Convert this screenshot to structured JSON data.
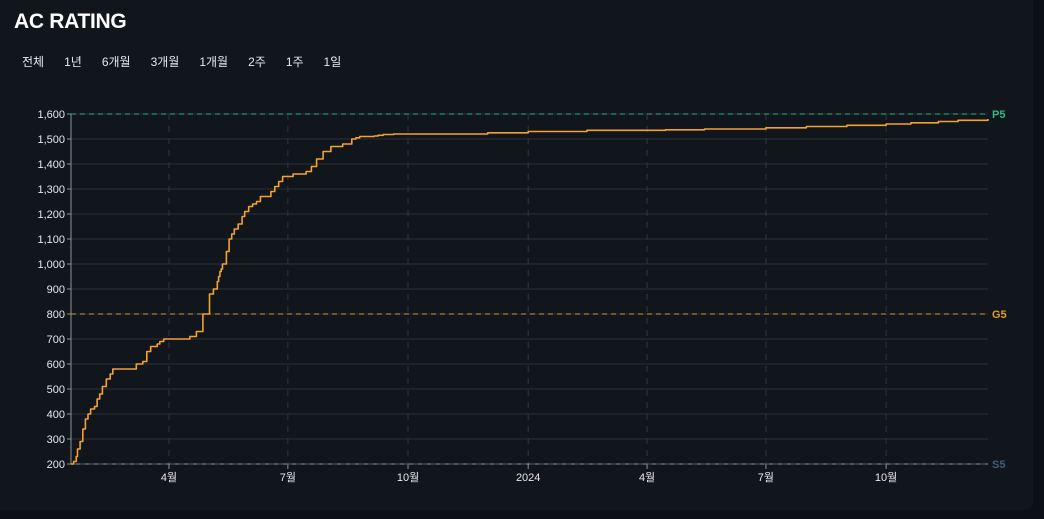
{
  "header": {
    "title": "AC RATING"
  },
  "time_ranges": [
    "전체",
    "1년",
    "6개월",
    "3개월",
    "1개월",
    "2주",
    "1주",
    "1일"
  ],
  "colors": {
    "line": "#f5a131",
    "gold": "#e59a2e",
    "platinum": "#2bbd82",
    "silver": "#445a73",
    "grid": "#2a3038",
    "text": "#e6e8eb"
  },
  "chart_data": {
    "type": "line",
    "title": "",
    "xlabel": "",
    "ylabel": "",
    "ylim": [
      200,
      1600
    ],
    "yticks": [
      "1,600",
      "1,500",
      "1,400",
      "1,300",
      "1,200",
      "1,100",
      "1,000",
      "900",
      "800",
      "700",
      "600",
      "500",
      "400",
      "300",
      "200"
    ],
    "xticks": [
      {
        "label": "4월",
        "date": "2023-04-01"
      },
      {
        "label": "7월",
        "date": "2023-07-01"
      },
      {
        "label": "10월",
        "date": "2023-10-01"
      },
      {
        "label": "2024",
        "date": "2024-01-01"
      },
      {
        "label": "4월",
        "date": "2024-04-01"
      },
      {
        "label": "7월",
        "date": "2024-07-01"
      },
      {
        "label": "10월",
        "date": "2024-10-01"
      }
    ],
    "xlim": [
      "2023-01-16",
      "2024-12-18"
    ],
    "reference_lines": [
      {
        "label": "P5",
        "value": 1600,
        "color": "#2bbd82"
      },
      {
        "label": "G5",
        "value": 800,
        "color": "#e59a2e"
      },
      {
        "label": "S5",
        "value": 200,
        "color": "#445a73"
      }
    ],
    "series": [
      {
        "x": [
          "2023-01-16",
          "2023-01-18",
          "2023-01-20",
          "2023-01-21",
          "2023-01-23",
          "2023-01-25",
          "2023-01-27",
          "2023-01-29",
          "2023-01-31",
          "2023-02-03",
          "2023-02-05",
          "2023-02-07",
          "2023-02-09",
          "2023-02-12",
          "2023-02-15",
          "2023-02-17",
          "2023-02-19",
          "2023-02-21",
          "2023-02-25",
          "2023-03-02",
          "2023-03-07",
          "2023-03-12",
          "2023-03-15",
          "2023-03-18",
          "2023-03-21",
          "2023-03-23",
          "2023-03-25",
          "2023-03-28",
          "2023-04-02",
          "2023-04-05",
          "2023-04-08",
          "2023-04-12",
          "2023-04-17",
          "2023-04-22",
          "2023-04-27",
          "2023-05-02",
          "2023-05-05",
          "2023-05-08",
          "2023-05-09",
          "2023-05-10",
          "2023-05-11",
          "2023-05-12",
          "2023-05-15",
          "2023-05-17",
          "2023-05-19",
          "2023-05-21",
          "2023-05-24",
          "2023-05-27",
          "2023-05-29",
          "2023-06-01",
          "2023-06-04",
          "2023-06-07",
          "2023-06-10",
          "2023-06-13",
          "2023-06-16",
          "2023-06-18",
          "2023-06-21",
          "2023-06-24",
          "2023-06-27",
          "2023-07-05",
          "2023-07-11",
          "2023-07-15",
          "2023-07-19",
          "2023-07-23",
          "2023-07-28",
          "2023-08-03",
          "2023-08-12",
          "2023-08-19",
          "2023-08-22",
          "2023-08-25",
          "2023-08-28",
          "2023-08-31",
          "2023-09-03",
          "2023-09-05",
          "2023-09-08",
          "2023-09-12",
          "2023-09-20",
          "2023-10-01",
          "2023-11-08",
          "2023-12-01",
          "2024-01-01",
          "2024-02-15",
          "2024-03-15",
          "2024-04-15",
          "2024-05-15",
          "2024-06-05",
          "2024-07-01",
          "2024-08-01",
          "2024-09-01",
          "2024-10-01",
          "2024-10-20",
          "2024-11-10",
          "2024-11-25",
          "2024-12-18"
        ],
        "values": [
          200,
          210,
          230,
          260,
          290,
          340,
          380,
          400,
          420,
          430,
          460,
          480,
          510,
          540,
          560,
          580,
          580,
          580,
          580,
          580,
          600,
          610,
          650,
          670,
          670,
          680,
          690,
          700,
          700,
          700,
          700,
          700,
          710,
          730,
          800,
          880,
          900,
          930,
          950,
          970,
          980,
          1000,
          1050,
          1100,
          1120,
          1140,
          1160,
          1190,
          1210,
          1230,
          1240,
          1250,
          1270,
          1270,
          1270,
          1290,
          1310,
          1330,
          1350,
          1360,
          1360,
          1370,
          1390,
          1420,
          1450,
          1470,
          1480,
          1500,
          1505,
          1510,
          1510,
          1510,
          1510,
          1512,
          1515,
          1518,
          1520,
          1520,
          1520,
          1525,
          1530,
          1535,
          1535,
          1537,
          1540,
          1540,
          1545,
          1550,
          1555,
          1560,
          1565,
          1570,
          1575,
          1580
        ]
      }
    ]
  }
}
